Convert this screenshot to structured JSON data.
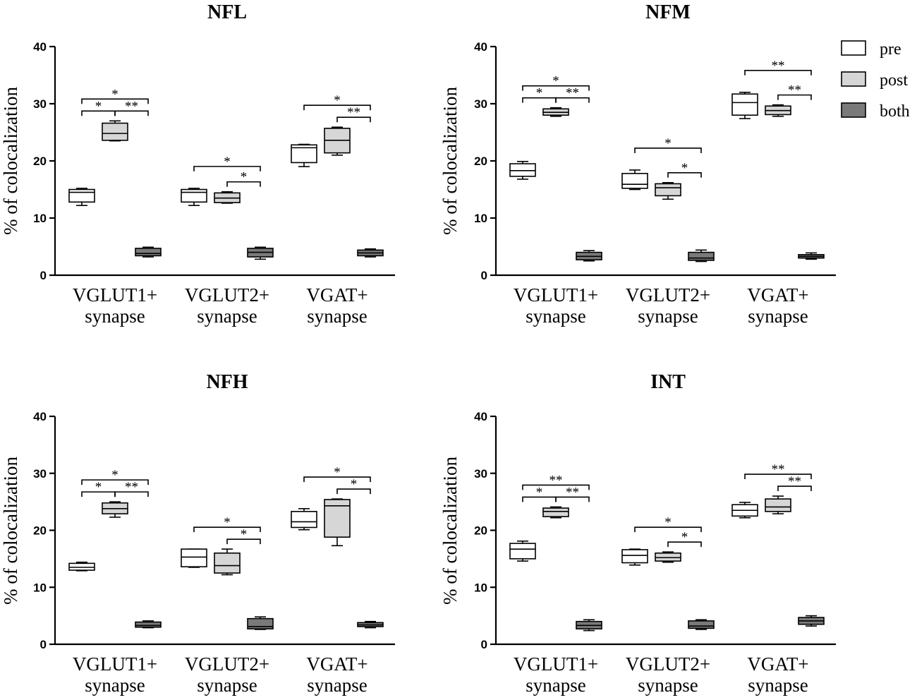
{
  "colors": {
    "pre": "#ffffff",
    "post": "#d6d6d6",
    "both": "#7a7a7a"
  },
  "legend": [
    {
      "key": "pre",
      "label": "pre"
    },
    {
      "key": "post",
      "label": "post"
    },
    {
      "key": "both",
      "label": "both"
    }
  ],
  "chart_data": [
    {
      "type": "box",
      "title": "NFL",
      "ylabel": "% of colocalization",
      "ylim": [
        0,
        40
      ],
      "yticks": [
        "0",
        "10",
        "20",
        "30",
        "40"
      ],
      "categories": [
        [
          "VGLUT1+",
          "synapse"
        ],
        [
          "VGLUT2+",
          "synapse"
        ],
        [
          "VGAT+",
          "synapse"
        ]
      ],
      "groups": [
        {
          "pre": [
            12.2,
            12.8,
            14.5,
            15.0,
            15.2
          ],
          "post": [
            23.5,
            23.6,
            24.8,
            26.6,
            27.0
          ],
          "both": [
            3.2,
            3.4,
            3.8,
            4.7,
            4.9
          ]
        },
        {
          "pre": [
            12.2,
            12.8,
            14.5,
            15.0,
            15.2
          ],
          "post": [
            12.6,
            12.7,
            13.5,
            14.4,
            14.6
          ],
          "both": [
            2.8,
            3.2,
            4.0,
            4.7,
            4.9
          ]
        },
        {
          "pre": [
            19.0,
            19.7,
            22.3,
            22.8,
            22.9
          ],
          "post": [
            21.0,
            21.4,
            23.6,
            25.7,
            25.9
          ],
          "both": [
            3.2,
            3.4,
            3.9,
            4.4,
            4.6
          ]
        }
      ],
      "significance": [
        {
          "group": 0,
          "from": "pre",
          "to": "post",
          "level": 0,
          "label": "*"
        },
        {
          "group": 0,
          "from": "post",
          "to": "both",
          "level": 0,
          "label": "**"
        },
        {
          "group": 0,
          "from": "pre",
          "to": "both",
          "level": 1,
          "label": "*"
        },
        {
          "group": 1,
          "from": "post",
          "to": "both",
          "level": 0,
          "label": "*"
        },
        {
          "group": 1,
          "from": "pre",
          "to": "both",
          "level": 1,
          "label": "*"
        },
        {
          "group": 2,
          "from": "post",
          "to": "both",
          "level": 0,
          "label": "**"
        },
        {
          "group": 2,
          "from": "pre",
          "to": "both",
          "level": 1,
          "label": "*"
        }
      ]
    },
    {
      "type": "box",
      "title": "NFM",
      "ylabel": "% of colocalization",
      "ylim": [
        0,
        40
      ],
      "yticks": [
        "0",
        "10",
        "20",
        "30",
        "40"
      ],
      "categories": [
        [
          "VGLUT1+",
          "synapse"
        ],
        [
          "VGLUT2+",
          "synapse"
        ],
        [
          "VGAT+",
          "synapse"
        ]
      ],
      "groups": [
        {
          "pre": [
            16.8,
            17.3,
            18.3,
            19.5,
            19.9
          ],
          "post": [
            27.8,
            28.0,
            28.5,
            29.1,
            29.3
          ],
          "both": [
            2.5,
            2.7,
            3.3,
            4.0,
            4.3
          ]
        },
        {
          "pre": [
            15.0,
            15.2,
            15.9,
            17.8,
            18.4
          ],
          "post": [
            13.3,
            13.9,
            15.3,
            16.0,
            16.2
          ],
          "both": [
            2.4,
            2.6,
            3.0,
            4.0,
            4.4
          ]
        },
        {
          "pre": [
            27.4,
            28.0,
            30.2,
            31.7,
            32.0
          ],
          "post": [
            27.8,
            28.1,
            28.8,
            29.6,
            29.8
          ],
          "both": [
            2.8,
            3.0,
            3.3,
            3.6,
            3.9
          ]
        }
      ],
      "significance": [
        {
          "group": 0,
          "from": "pre",
          "to": "post",
          "level": 0,
          "label": "*"
        },
        {
          "group": 0,
          "from": "post",
          "to": "both",
          "level": 0,
          "label": "**"
        },
        {
          "group": 0,
          "from": "pre",
          "to": "both",
          "level": 1,
          "label": "*"
        },
        {
          "group": 1,
          "from": "post",
          "to": "both",
          "level": 0,
          "label": "*"
        },
        {
          "group": 1,
          "from": "pre",
          "to": "both",
          "level": 1,
          "label": "*"
        },
        {
          "group": 2,
          "from": "post",
          "to": "both",
          "level": 0,
          "label": "**"
        },
        {
          "group": 2,
          "from": "pre",
          "to": "both",
          "level": 1,
          "label": "**"
        }
      ]
    },
    {
      "type": "box",
      "title": "NFH",
      "ylabel": "% of colocalization",
      "ylim": [
        0,
        40
      ],
      "yticks": [
        "0",
        "10",
        "20",
        "30",
        "40"
      ],
      "categories": [
        [
          "VGLUT1+",
          "synapse"
        ],
        [
          "VGLUT2+",
          "synapse"
        ],
        [
          "VGAT+",
          "synapse"
        ]
      ],
      "groups": [
        {
          "pre": [
            12.9,
            13.0,
            13.5,
            14.2,
            14.4
          ],
          "post": [
            22.3,
            22.9,
            23.8,
            24.8,
            25.0
          ],
          "both": [
            2.9,
            3.0,
            3.3,
            3.9,
            4.1
          ]
        },
        {
          "pre": [
            13.5,
            13.6,
            15.3,
            16.7,
            16.7
          ],
          "post": [
            12.2,
            12.5,
            13.8,
            16.0,
            16.7
          ],
          "both": [
            2.6,
            2.7,
            3.1,
            4.5,
            4.8
          ]
        },
        {
          "pre": [
            20.1,
            20.5,
            21.5,
            23.3,
            23.8
          ],
          "post": [
            17.3,
            18.8,
            24.3,
            25.4,
            25.5
          ],
          "both": [
            2.9,
            3.1,
            3.4,
            3.8,
            4.0
          ]
        }
      ],
      "significance": [
        {
          "group": 0,
          "from": "pre",
          "to": "post",
          "level": 0,
          "label": "*"
        },
        {
          "group": 0,
          "from": "post",
          "to": "both",
          "level": 0,
          "label": "**"
        },
        {
          "group": 0,
          "from": "pre",
          "to": "both",
          "level": 1,
          "label": "*"
        },
        {
          "group": 1,
          "from": "post",
          "to": "both",
          "level": 0,
          "label": "*"
        },
        {
          "group": 1,
          "from": "pre",
          "to": "both",
          "level": 1,
          "label": "*"
        },
        {
          "group": 2,
          "from": "post",
          "to": "both",
          "level": 0,
          "label": "*"
        },
        {
          "group": 2,
          "from": "pre",
          "to": "both",
          "level": 1,
          "label": "*"
        }
      ]
    },
    {
      "type": "box",
      "title": "INT",
      "ylabel": "% of colocalization",
      "ylim": [
        0,
        40
      ],
      "yticks": [
        "0",
        "10",
        "20",
        "30",
        "40"
      ],
      "categories": [
        [
          "VGLUT1+",
          "synapse"
        ],
        [
          "VGLUT2+",
          "synapse"
        ],
        [
          "VGAT+",
          "synapse"
        ]
      ],
      "groups": [
        {
          "pre": [
            14.6,
            15.0,
            16.7,
            17.7,
            18.1
          ],
          "post": [
            22.2,
            22.4,
            23.3,
            23.9,
            24.1
          ],
          "both": [
            2.4,
            2.7,
            3.3,
            4.0,
            4.3
          ]
        },
        {
          "pre": [
            13.9,
            14.3,
            15.6,
            16.6,
            16.7
          ],
          "post": [
            14.4,
            14.6,
            15.2,
            16.0,
            16.2
          ],
          "both": [
            2.6,
            2.8,
            3.2,
            4.1,
            4.3
          ]
        },
        {
          "pre": [
            22.2,
            22.5,
            23.5,
            24.5,
            24.9
          ],
          "post": [
            22.9,
            23.3,
            24.1,
            25.5,
            26.0
          ],
          "both": [
            3.2,
            3.5,
            4.1,
            4.7,
            5.0
          ]
        }
      ],
      "significance": [
        {
          "group": 0,
          "from": "pre",
          "to": "post",
          "level": 0,
          "label": "*"
        },
        {
          "group": 0,
          "from": "post",
          "to": "both",
          "level": 0,
          "label": "**"
        },
        {
          "group": 0,
          "from": "pre",
          "to": "both",
          "level": 1,
          "label": "**"
        },
        {
          "group": 1,
          "from": "post",
          "to": "both",
          "level": 0,
          "label": "*"
        },
        {
          "group": 1,
          "from": "pre",
          "to": "both",
          "level": 1,
          "label": "*"
        },
        {
          "group": 2,
          "from": "post",
          "to": "both",
          "level": 0,
          "label": "**"
        },
        {
          "group": 2,
          "from": "pre",
          "to": "both",
          "level": 1,
          "label": "**"
        }
      ]
    }
  ]
}
